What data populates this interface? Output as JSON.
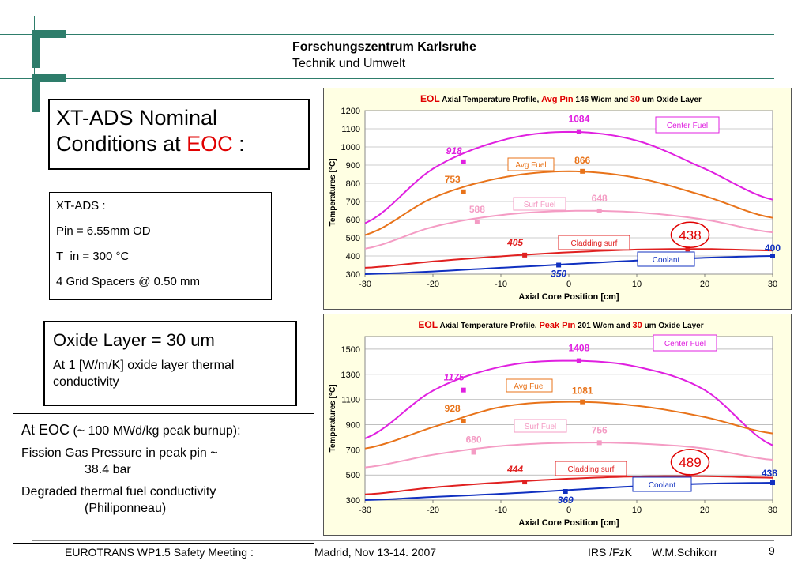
{
  "header": {
    "institution": "Forschungszentrum Karlsruhe",
    "subtitle": "Technik und Umwelt"
  },
  "title_box": {
    "line1": "XT-ADS Nominal",
    "line2_prefix": "Conditions at ",
    "line2_highlight": "EOC",
    "line2_suffix": " :"
  },
  "specs": {
    "items": [
      "XT-ADS :",
      "Pin = 6.55mm OD",
      "T_in = 300 °C",
      "4 Grid Spacers @ 0.50 mm"
    ]
  },
  "oxide": {
    "title": "Oxide Layer = 30 um",
    "body": "At 1 [W/m/K] oxide layer thermal conductivity"
  },
  "eoc_box": {
    "line1_prefix": "At EOC",
    "line1_suffix": " (~ 100 MWd/kg peak burnup):",
    "line2": "Fission Gas Pressure in peak pin ~",
    "line2_cont": "38.4 bar",
    "line3": "Degraded thermal fuel conductivity",
    "line3_cont": "(Philiponneau)"
  },
  "footer": {
    "meeting": "EUROTRANS  WP1.5 Safety Meeting :",
    "place_date": "Madrid, Nov 13-14.  2007",
    "org": "IRS /FzK",
    "author": "W.M.Schikorr",
    "page": "9"
  },
  "colors": {
    "logo": "#2e7d6b",
    "center_fuel": "#e020e0",
    "avg_fuel": "#e8731a",
    "surf_fuel": "#f49cc4",
    "cladding": "#e02020",
    "coolant": "#1030c0",
    "chart_bg": "#ffffe3",
    "highlight_red": "#e00000"
  },
  "chart_data": [
    {
      "type": "line",
      "title_parts": [
        "EOL",
        " Axial Temperature  Profile,   ",
        "Avg Pin",
        " 146 W/cm and ",
        "30",
        " um Oxide Layer"
      ],
      "xlabel": "Axial Core Position [cm]",
      "ylabel": "Temperatures [°C]",
      "xlim": [
        -30,
        30
      ],
      "ylim": [
        300,
        1200
      ],
      "xticks": [
        -30,
        -20,
        -10,
        0,
        10,
        20,
        30
      ],
      "yticks": [
        300,
        400,
        500,
        600,
        700,
        800,
        900,
        1000,
        1100,
        1200
      ],
      "series": [
        {
          "name": "Center Fuel",
          "key": "center_fuel",
          "x": [
            -30,
            -20,
            -10,
            0,
            10,
            20,
            30
          ],
          "y": [
            580,
            880,
            1035,
            1083,
            1035,
            880,
            710
          ]
        },
        {
          "name": "Avg Fuel",
          "key": "avg_fuel",
          "x": [
            -30,
            -20,
            -10,
            0,
            10,
            20,
            30
          ],
          "y": [
            515,
            720,
            830,
            866,
            830,
            730,
            610
          ]
        },
        {
          "name": "Surf Fuel",
          "key": "surf_fuel",
          "x": [
            -30,
            -20,
            -10,
            0,
            10,
            20,
            30
          ],
          "y": [
            440,
            560,
            625,
            648,
            640,
            600,
            530
          ]
        },
        {
          "name": "Cladding surf",
          "key": "cladding",
          "x": [
            -30,
            -20,
            -10,
            0,
            10,
            20,
            30
          ],
          "y": [
            335,
            370,
            398,
            420,
            435,
            438,
            430
          ]
        },
        {
          "name": "Coolant",
          "key": "coolant",
          "x": [
            -30,
            -20,
            -10,
            0,
            10,
            20,
            30
          ],
          "y": [
            300,
            315,
            335,
            355,
            375,
            390,
            400
          ]
        }
      ],
      "markers": [
        {
          "key": "center_fuel",
          "x": -15.5,
          "y": 918,
          "label": "918",
          "italic": true
        },
        {
          "key": "center_fuel",
          "x": 1.5,
          "y": 1084,
          "label": "1084",
          "italic": false
        },
        {
          "key": "avg_fuel",
          "x": -15.5,
          "y": 753,
          "label": "753",
          "italic": false
        },
        {
          "key": "avg_fuel",
          "x": 2,
          "y": 866,
          "label": "866",
          "italic": false
        },
        {
          "key": "surf_fuel",
          "x": -13.5,
          "y": 588,
          "label": "588",
          "italic": false
        },
        {
          "key": "surf_fuel",
          "x": 4.5,
          "y": 648,
          "label": "648",
          "italic": false
        },
        {
          "key": "cladding",
          "x": -6.5,
          "y": 405,
          "label": "405",
          "italic": true
        },
        {
          "key": "cladding",
          "x": 17.5,
          "y": 438,
          "label": "438",
          "italic": false,
          "circled": true
        },
        {
          "key": "coolant",
          "x": -1.5,
          "y": 350,
          "label": "350",
          "italic": true
        },
        {
          "key": "coolant",
          "x": 30,
          "y": 400,
          "label": "400",
          "italic": false
        }
      ],
      "legend": {
        "center_fuel": "Center Fuel",
        "avg_fuel": "Avg Fuel",
        "surf_fuel": "Surf Fuel",
        "cladding": "Cladding surf",
        "coolant": "Coolant"
      }
    },
    {
      "type": "line",
      "title_parts": [
        "EOL",
        " Axial Temperature  Profile,   ",
        "Peak Pin",
        " 201 W/cm and ",
        "30",
        " um Oxide Layer"
      ],
      "xlabel": "Axial Core Position [cm]",
      "ylabel": "Temperatures [°C]",
      "xlim": [
        -30,
        30
      ],
      "ylim": [
        300,
        1600
      ],
      "xticks": [
        -30,
        -20,
        -10,
        0,
        10,
        20,
        30
      ],
      "yticks": [
        300,
        500,
        700,
        900,
        1100,
        1300,
        1500
      ],
      "series": [
        {
          "name": "Center Fuel",
          "key": "center_fuel",
          "x": [
            -30,
            -20,
            -10,
            0,
            10,
            20,
            30
          ],
          "y": [
            790,
            1170,
            1360,
            1408,
            1360,
            1175,
            735
          ]
        },
        {
          "name": "Avg Fuel",
          "key": "avg_fuel",
          "x": [
            -30,
            -20,
            -10,
            0,
            10,
            20,
            30
          ],
          "y": [
            710,
            880,
            1040,
            1081,
            1050,
            960,
            830
          ]
        },
        {
          "name": "Surf Fuel",
          "key": "surf_fuel",
          "x": [
            -30,
            -20,
            -10,
            0,
            10,
            20,
            30
          ],
          "y": [
            560,
            660,
            730,
            756,
            750,
            710,
            620
          ]
        },
        {
          "name": "Cladding surf",
          "key": "cladding",
          "x": [
            -30,
            -20,
            -10,
            0,
            10,
            20,
            30
          ],
          "y": [
            345,
            400,
            440,
            470,
            488,
            490,
            478
          ]
        },
        {
          "name": "Coolant",
          "key": "coolant",
          "x": [
            -30,
            -20,
            -10,
            0,
            10,
            20,
            30
          ],
          "y": [
            300,
            325,
            350,
            380,
            410,
            430,
            438
          ]
        }
      ],
      "markers": [
        {
          "key": "center_fuel",
          "x": -15.5,
          "y": 1175,
          "label": "1175",
          "italic": true
        },
        {
          "key": "center_fuel",
          "x": 1.5,
          "y": 1408,
          "label": "1408",
          "italic": false
        },
        {
          "key": "avg_fuel",
          "x": -15.5,
          "y": 928,
          "label": "928",
          "italic": false
        },
        {
          "key": "avg_fuel",
          "x": 2,
          "y": 1081,
          "label": "1081",
          "italic": false
        },
        {
          "key": "surf_fuel",
          "x": -14,
          "y": 680,
          "label": "680",
          "italic": false
        },
        {
          "key": "surf_fuel",
          "x": 4.5,
          "y": 756,
          "label": "756",
          "italic": false
        },
        {
          "key": "cladding",
          "x": -6.5,
          "y": 444,
          "label": "444",
          "italic": true
        },
        {
          "key": "cladding",
          "x": 17.5,
          "y": 489,
          "label": "489",
          "italic": false,
          "circled": true
        },
        {
          "key": "coolant",
          "x": -0.5,
          "y": 369,
          "label": "369",
          "italic": true
        },
        {
          "key": "coolant",
          "x": 30,
          "y": 438,
          "label": "438",
          "italic": false
        }
      ],
      "legend": {
        "center_fuel": "Center Fuel",
        "avg_fuel": "Avg Fuel",
        "surf_fuel": "Surf Fuel",
        "cladding": "Cladding surf",
        "coolant": "Coolant"
      }
    }
  ]
}
